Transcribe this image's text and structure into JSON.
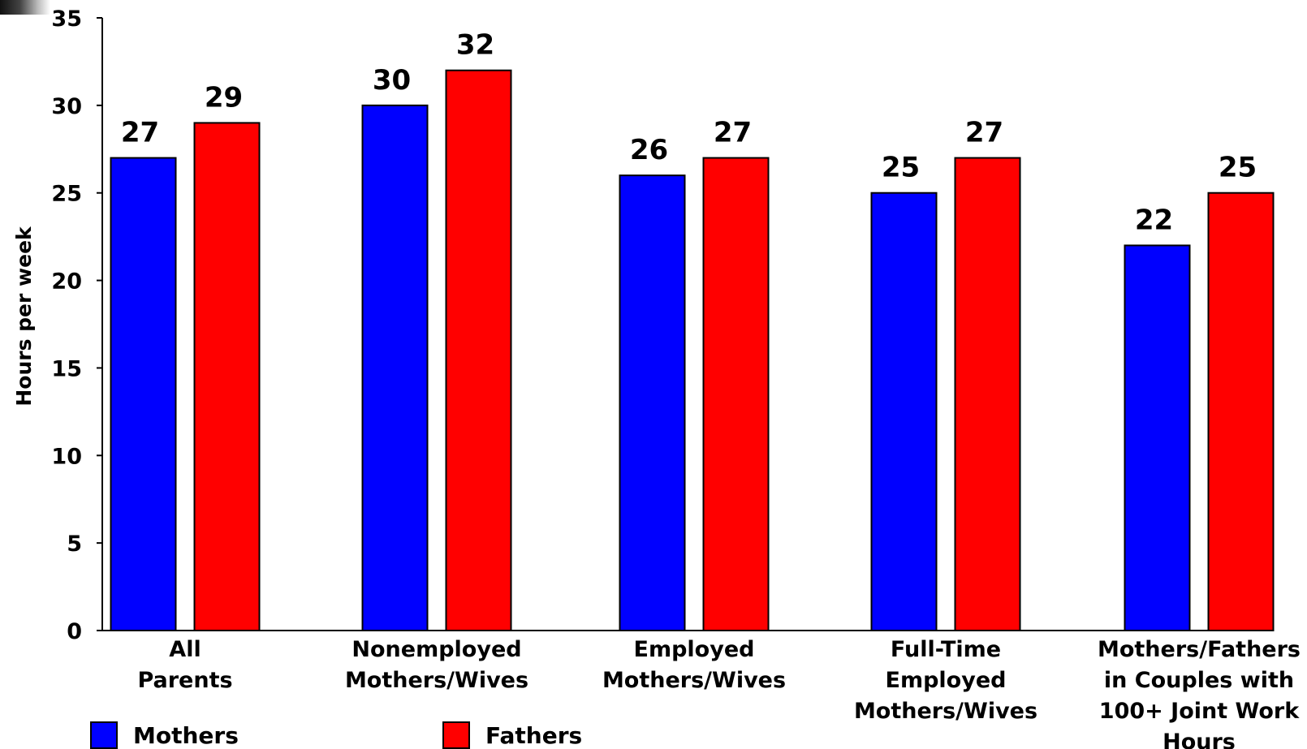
{
  "chart_data": {
    "type": "bar",
    "title": "",
    "xlabel": "",
    "ylabel": "Hours per week",
    "ylim": [
      0,
      35
    ],
    "yticks": [
      0,
      5,
      10,
      15,
      20,
      25,
      30,
      35
    ],
    "grid": false,
    "legend_position": "bottom-left",
    "categories": [
      [
        "All",
        "Parents"
      ],
      [
        "Nonemployed",
        "Mothers/Wives"
      ],
      [
        "Employed",
        "Mothers/Wives"
      ],
      [
        "Full-Time",
        "Employed",
        "Mothers/Wives"
      ],
      [
        "Mothers/Fathers",
        "in Couples with",
        "100+ Joint Work",
        "Hours"
      ]
    ],
    "series": [
      {
        "name": "Mothers",
        "color": "#0000ff",
        "values": [
          27,
          30,
          26,
          25,
          22
        ]
      },
      {
        "name": "Fathers",
        "color": "#ff0000",
        "values": [
          29,
          32,
          27,
          27,
          25
        ]
      }
    ],
    "data_labels": true
  }
}
